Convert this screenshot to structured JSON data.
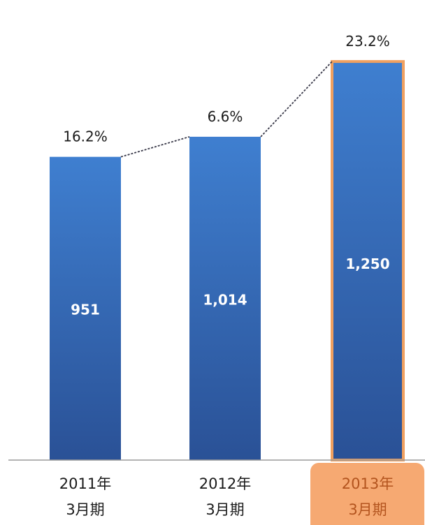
{
  "chart_data": {
    "type": "bar",
    "categories": [
      [
        "2011年",
        "3月期"
      ],
      [
        "2012年",
        "3月期"
      ],
      [
        "2013年",
        "3月期"
      ]
    ],
    "values": [
      951,
      1014,
      1250
    ],
    "value_labels": [
      "951",
      "1,014",
      "1,250"
    ],
    "growth_labels": [
      "16.2%",
      "6.6%",
      "23.2%"
    ],
    "highlight_index": 2,
    "ylim": [
      0,
      1340
    ],
    "grid": false,
    "colors": {
      "bar_top": "#3f7fd0",
      "bar_bottom": "#2a5196",
      "highlight_border": "#f0a060",
      "highlight_fill": "#f6a972",
      "trend_line": "#3a3a4a"
    }
  }
}
